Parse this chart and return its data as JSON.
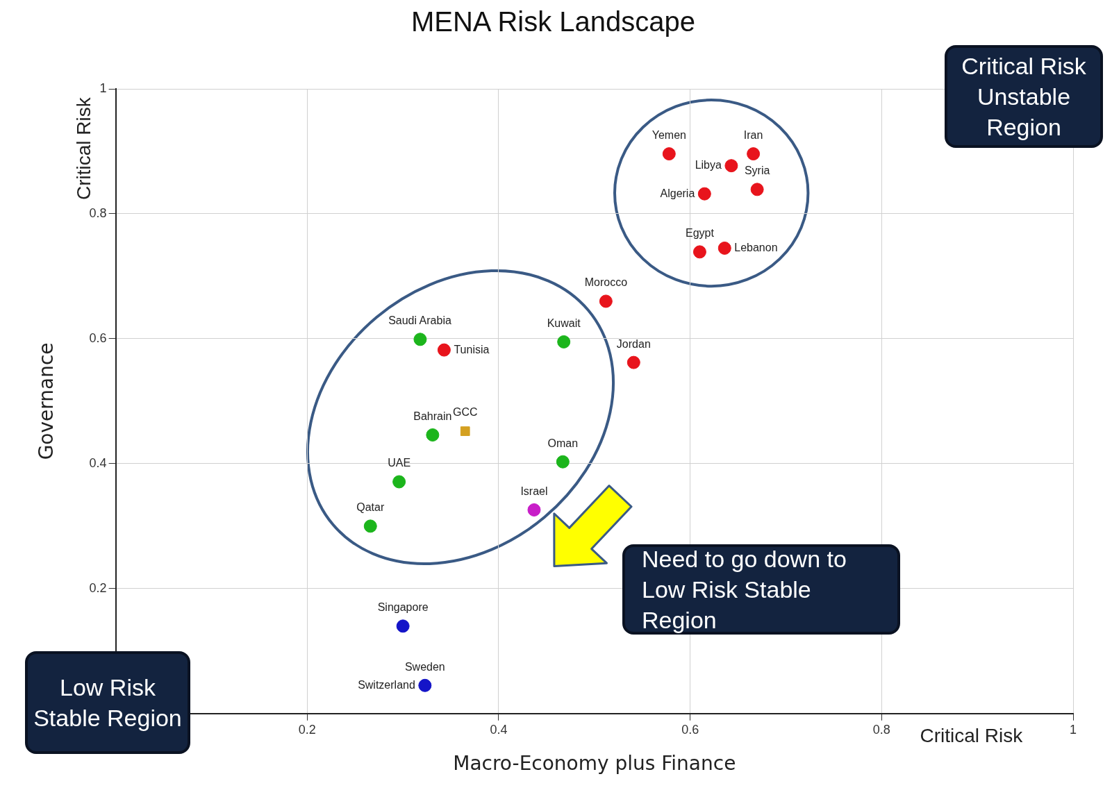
{
  "chart_data": {
    "type": "scatter",
    "title": "MENA Risk Landscape",
    "xlabel": "Macro-Economy plus Finance",
    "ylabel": "Governance",
    "xlim": [
      0,
      1
    ],
    "ylim": [
      0,
      1
    ],
    "xticks": [
      0.2,
      0.4,
      0.6,
      0.8,
      1
    ],
    "yticks": [
      0.2,
      0.4,
      0.6,
      0.8,
      1
    ],
    "grid": true,
    "legend": false,
    "marker": "circle",
    "series": [
      {
        "color": "#e8141c",
        "x": [
          0.578,
          0.666,
          0.643,
          0.67,
          0.615,
          0.61,
          0.636,
          0.512,
          0.343,
          0.541
        ],
        "values": [
          0.896,
          0.896,
          0.877,
          0.839,
          0.832,
          0.739,
          0.745,
          0.66,
          0.582,
          0.562
        ]
      },
      {
        "color": "#1cb51c",
        "x": [
          0.318,
          0.468,
          0.331,
          0.467,
          0.296,
          0.266
        ],
        "values": [
          0.599,
          0.595,
          0.446,
          0.403,
          0.371,
          0.3
        ]
      },
      {
        "color": "#d4a020",
        "marker": "square",
        "x": [
          0.365
        ],
        "values": [
          0.452
        ]
      },
      {
        "color": "#c81ec8",
        "x": [
          0.437
        ],
        "values": [
          0.326
        ]
      },
      {
        "color": "#1414c8",
        "x": [
          0.3,
          0.323
        ],
        "values": [
          0.14,
          0.045
        ]
      }
    ],
    "annotations": [
      "Critical Risk Unstable Region",
      "Low Risk Stable Region",
      "Need to go down to Low Risk Stable Region",
      "Critical Risk",
      "Critical Risk",
      {
        "text": "Yemen",
        "x": 0.578,
        "y": 0.896
      },
      {
        "text": "Iran",
        "x": 0.666,
        "y": 0.896
      },
      {
        "text": "Libya",
        "x": 0.643,
        "y": 0.877
      },
      {
        "text": "Syria",
        "x": 0.67,
        "y": 0.839
      },
      {
        "text": "Algeria",
        "x": 0.615,
        "y": 0.832
      },
      {
        "text": "Egypt",
        "x": 0.61,
        "y": 0.739
      },
      {
        "text": "Lebanon",
        "x": 0.636,
        "y": 0.745
      },
      {
        "text": "Morocco",
        "x": 0.512,
        "y": 0.66
      },
      {
        "text": "Saudi Arabia",
        "x": 0.318,
        "y": 0.599
      },
      {
        "text": "Tunisia",
        "x": 0.343,
        "y": 0.582
      },
      {
        "text": "Kuwait",
        "x": 0.468,
        "y": 0.595
      },
      {
        "text": "Jordan",
        "x": 0.541,
        "y": 0.562
      },
      {
        "text": "Bahrain",
        "x": 0.331,
        "y": 0.446
      },
      {
        "text": "GCC",
        "x": 0.365,
        "y": 0.452
      },
      {
        "text": "Oman",
        "x": 0.467,
        "y": 0.403
      },
      {
        "text": "UAE",
        "x": 0.296,
        "y": 0.371
      },
      {
        "text": "Israel",
        "x": 0.437,
        "y": 0.326
      },
      {
        "text": "Qatar",
        "x": 0.266,
        "y": 0.3
      },
      {
        "text": "Singapore",
        "x": 0.3,
        "y": 0.14
      },
      {
        "text": "Sweden",
        "x": 0.323,
        "y": 0.045
      },
      {
        "text": "Switzerland",
        "x": 0.323,
        "y": 0.045
      }
    ]
  }
}
